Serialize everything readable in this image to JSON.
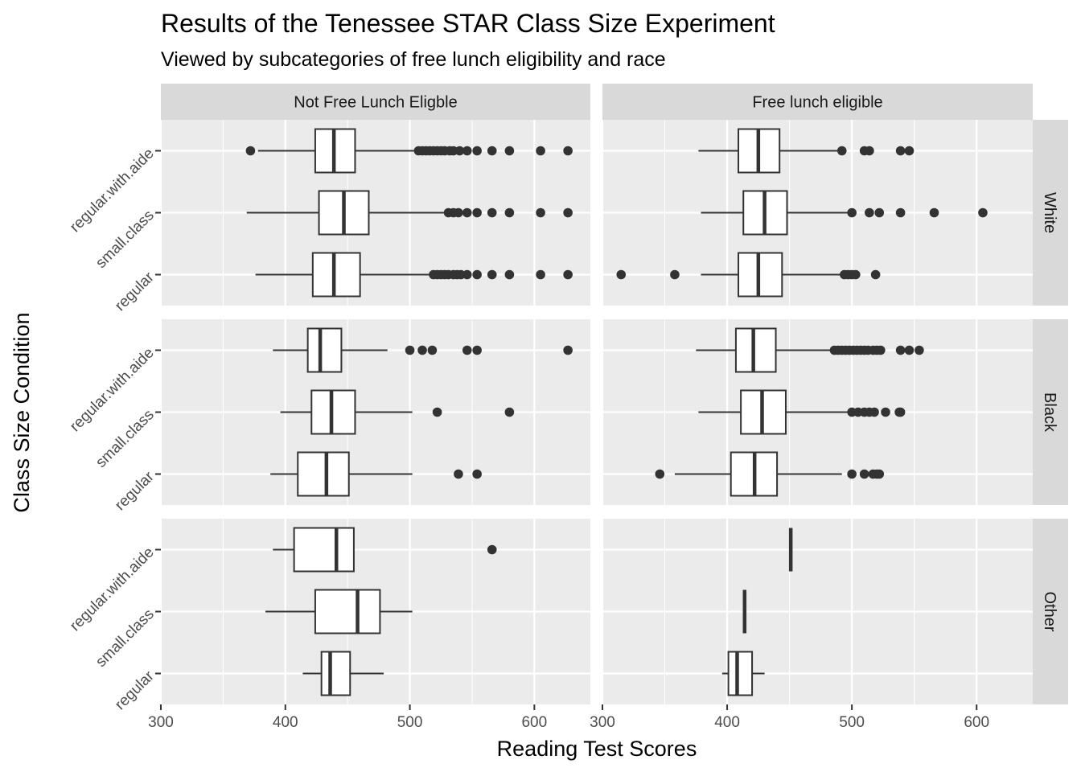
{
  "chart_data": {
    "type": "boxplot",
    "title": "Results of the Tenessee STAR Class Size Experiment",
    "subtitle": "Viewed by subcategories of free lunch eligibility and race",
    "xlabel": "Reading Test Scores",
    "ylabel": "Class Size Condition",
    "xlim": [
      300,
      645
    ],
    "x_ticks": [
      300,
      400,
      500,
      600
    ],
    "categories": [
      "regular",
      "small.class",
      "regular.with.aide"
    ],
    "facet_cols": [
      "Not Free Lunch Eligble",
      "Free lunch eligible"
    ],
    "facet_rows": [
      "White",
      "Black",
      "Other"
    ],
    "grid": true,
    "panels": [
      {
        "row": "White",
        "col": "Not Free Lunch Eligble",
        "boxes": [
          {
            "category": "regular",
            "whisker_low": 376,
            "q1": 422,
            "median": 439,
            "q3": 460,
            "whisker_high": 516,
            "outliers": [
              519,
              522,
              525,
              528,
              531,
              535,
              538,
              541,
              546,
              554,
              566,
              580,
              605,
              627
            ]
          },
          {
            "category": "small.class",
            "whisker_low": 369,
            "q1": 427,
            "median": 447,
            "q3": 467,
            "whisker_high": 528,
            "outliers": [
              531,
              535,
              539,
              546,
              554,
              566,
              580,
              605,
              627
            ]
          },
          {
            "category": "regular.with.aide",
            "whisker_low": 378,
            "q1": 424,
            "median": 439,
            "q3": 456,
            "whisker_high": 504,
            "outliers": [
              372,
              507,
              510,
              513,
              516,
              519,
              522,
              525,
              528,
              532,
              535,
              540,
              546,
              554,
              566,
              580,
              605,
              627
            ]
          }
        ]
      },
      {
        "row": "White",
        "col": "Free lunch eligible",
        "boxes": [
          {
            "category": "regular",
            "whisker_low": 379,
            "q1": 409,
            "median": 425,
            "q3": 444,
            "whisker_high": 492,
            "outliers": [
              315,
              358,
              494,
              497,
              500,
              503,
              519
            ]
          },
          {
            "category": "small.class",
            "whisker_low": 379,
            "q1": 413,
            "median": 430,
            "q3": 448,
            "whisker_high": 497,
            "outliers": [
              500,
              514,
              522,
              539,
              566,
              605
            ]
          },
          {
            "category": "regular.with.aide",
            "whisker_low": 377,
            "q1": 409,
            "median": 425,
            "q3": 442,
            "whisker_high": 489,
            "outliers": [
              492,
              510,
              514,
              539,
              546
            ]
          }
        ]
      },
      {
        "row": "Black",
        "col": "Not Free Lunch Eligble",
        "boxes": [
          {
            "category": "regular",
            "whisker_low": 388,
            "q1": 410,
            "median": 433,
            "q3": 451,
            "whisker_high": 502,
            "outliers": [
              539,
              554
            ]
          },
          {
            "category": "small.class",
            "whisker_low": 396,
            "q1": 421,
            "median": 437,
            "q3": 456,
            "whisker_high": 502,
            "outliers": [
              522,
              580
            ]
          },
          {
            "category": "regular.with.aide",
            "whisker_low": 390,
            "q1": 418,
            "median": 428,
            "q3": 445,
            "whisker_high": 482,
            "outliers": [
              500,
              510,
              518,
              546,
              554,
              627
            ]
          }
        ]
      },
      {
        "row": "Black",
        "col": "Free lunch eligible",
        "boxes": [
          {
            "category": "regular",
            "whisker_low": 358,
            "q1": 403,
            "median": 422,
            "q3": 440,
            "whisker_high": 492,
            "outliers": [
              346,
              500,
              510,
              517,
              520,
              522
            ]
          },
          {
            "category": "small.class",
            "whisker_low": 377,
            "q1": 411,
            "median": 428,
            "q3": 447,
            "whisker_high": 497,
            "outliers": [
              500,
              505,
              510,
              514,
              518,
              527,
              538,
              539
            ]
          },
          {
            "category": "regular.with.aide",
            "whisker_low": 375,
            "q1": 407,
            "median": 421,
            "q3": 439,
            "whisker_high": 484,
            "outliers": [
              486,
              489,
              492,
              495,
              498,
              501,
              504,
              507,
              510,
              513,
              517,
              520,
              523,
              539,
              546,
              554
            ]
          }
        ]
      },
      {
        "row": "Other",
        "col": "Not Free Lunch Eligble",
        "boxes": [
          {
            "category": "regular",
            "whisker_low": 414,
            "q1": 429,
            "median": 436,
            "q3": 452,
            "whisker_high": 479,
            "outliers": []
          },
          {
            "category": "small.class",
            "whisker_low": 384,
            "q1": 424,
            "median": 458,
            "q3": 476,
            "whisker_high": 502,
            "outliers": []
          },
          {
            "category": "regular.with.aide",
            "whisker_low": 390,
            "q1": 407,
            "median": 441,
            "q3": 455,
            "whisker_high": 455,
            "outliers": [
              566
            ]
          }
        ]
      },
      {
        "row": "Other",
        "col": "Free lunch eligible",
        "boxes": [
          {
            "category": "regular",
            "whisker_low": 396,
            "q1": 401,
            "median": 408,
            "q3": 420,
            "whisker_high": 430,
            "outliers": []
          },
          {
            "category": "small.class",
            "whisker_low": 414,
            "q1": 414,
            "median": 414,
            "q3": 414,
            "whisker_high": 414,
            "outliers": []
          },
          {
            "category": "regular.with.aide",
            "whisker_low": 451,
            "q1": 451,
            "median": 451,
            "q3": 451,
            "whisker_high": 451,
            "outliers": []
          }
        ]
      }
    ]
  }
}
